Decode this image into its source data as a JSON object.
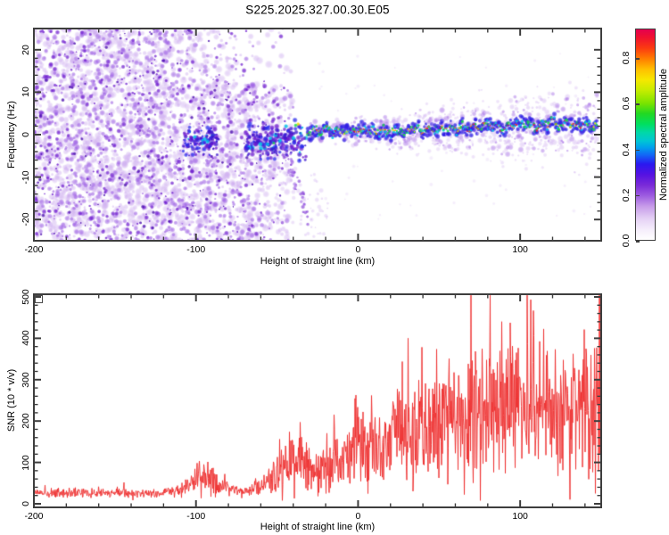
{
  "title": "S225.2025.327.00.30.E05",
  "colors": {
    "trace_red": "#ee3333",
    "axis_frame": "#3e3e3e",
    "text": "#000000",
    "noise_light_purple": "#d0b0ee",
    "noise_dark_purple": "#6a16cd"
  },
  "spectrogram": {
    "xlabel": "Height of straight line (km)",
    "ylabel": "Frequency (Hz)",
    "x_range": [
      -200,
      150
    ],
    "y_range": [
      -25,
      25
    ],
    "x_tick_labels": [
      "-200",
      "-100",
      "0",
      "100"
    ],
    "x_tick_values": [
      -200,
      -100,
      0,
      100
    ],
    "x_minor_step": 20,
    "y_tick_labels": [
      "20",
      "10",
      "0",
      "-10",
      "-20"
    ],
    "y_tick_values": [
      20,
      10,
      0,
      -10,
      -20
    ],
    "y_minor_step": 2
  },
  "colorbar": {
    "label": "Normalized spectral amplitude",
    "tick_labels": [
      "0.0",
      "0.2",
      "0.4",
      "0.6",
      "0.8"
    ],
    "tick_values": [
      0,
      0.2,
      0.4,
      0.6,
      0.8
    ],
    "vmax": 0.93,
    "stops": [
      [
        0.0,
        "#ffffff"
      ],
      [
        0.05,
        "#f5edfb"
      ],
      [
        0.1,
        "#e5d2f5"
      ],
      [
        0.16,
        "#c79be9"
      ],
      [
        0.21,
        "#9d5ce0"
      ],
      [
        0.26,
        "#7a2ad8"
      ],
      [
        0.31,
        "#5512e2"
      ],
      [
        0.36,
        "#2a18f0"
      ],
      [
        0.4,
        "#1460f6"
      ],
      [
        0.44,
        "#00a2ec"
      ],
      [
        0.47,
        "#00c6d4"
      ],
      [
        0.51,
        "#00d8a8"
      ],
      [
        0.55,
        "#00df60"
      ],
      [
        0.6,
        "#22d822"
      ],
      [
        0.65,
        "#7ce400"
      ],
      [
        0.71,
        "#c6ec00"
      ],
      [
        0.76,
        "#f6e800"
      ],
      [
        0.81,
        "#ffc000"
      ],
      [
        0.86,
        "#ff7e00"
      ],
      [
        0.91,
        "#fb3c10"
      ],
      [
        0.96,
        "#f0122e"
      ],
      [
        1.0,
        "#e4004e"
      ]
    ]
  },
  "snr_plot": {
    "xlabel": "Height of straight line (km)",
    "ylabel": "SNR (10 * v/v)",
    "x_range": [
      -200,
      150
    ],
    "y_range": [
      0,
      505
    ],
    "x_tick_labels": [
      "-200",
      "-100",
      "0",
      "100"
    ],
    "x_tick_values": [
      -200,
      -100,
      0,
      100
    ],
    "x_minor_step": 20,
    "y_tick_labels": [
      "500",
      "400",
      "300",
      "200",
      "100",
      "0"
    ],
    "y_tick_values": [
      500,
      400,
      300,
      200,
      100,
      0
    ],
    "y_minor_step": 20
  },
  "chart_data": [
    {
      "type": "heatmap",
      "title": "S225.2025.327.00.30.E05",
      "xlabel": "Height of straight line (km)",
      "ylabel": "Frequency (Hz)",
      "colorbar_label": "Normalized spectral amplitude",
      "xlim": [
        -200,
        150
      ],
      "ylim": [
        -25,
        25
      ],
      "colorbar_range": [
        0.0,
        0.93
      ],
      "description": "Broadband purple noise fills heights -200 to about -55 km; enhanced echo clusters near -100 and -50 km around 0 Hz with cyan cores; from -30 km to 148 km a narrow high-amplitude ridge (red/yellow/green core, blue-purple fringe) meanders near 0-3 Hz, its purple fringe widening toward the right edge.",
      "ridge_x_km": [
        -31,
        -25,
        -20,
        -15,
        -10,
        -5,
        0,
        5,
        10,
        15,
        20,
        25,
        30,
        35,
        40,
        45,
        50,
        55,
        60,
        65,
        70,
        75,
        80,
        85,
        90,
        95,
        100,
        105,
        110,
        115,
        120,
        125,
        130,
        135,
        140,
        145,
        148
      ],
      "ridge_freq_hz": [
        0.8,
        0.5,
        1.2,
        0.4,
        0.8,
        0.3,
        0.8,
        1.2,
        0.7,
        1.0,
        0.6,
        1.1,
        0.8,
        1.4,
        0.9,
        1.3,
        1.0,
        1.6,
        1.1,
        1.7,
        1.3,
        2.0,
        2.4,
        1.8,
        1.4,
        2.0,
        2.6,
        2.2,
        1.8,
        2.4,
        2.8,
        2.2,
        2.5,
        2.1,
        2.6,
        2.3,
        2.4
      ],
      "ridge_fringe_halfwidth_hz": [
        2.5,
        9.0
      ],
      "noise_regions": [
        {
          "name": "broadband-noise",
          "x_km": [
            -200,
            -40
          ],
          "freq_hz": [
            -25,
            25
          ]
        },
        {
          "name": "echo-cluster-a",
          "x_km": [
            -108,
            -86
          ],
          "freq_hz": [
            -7,
            5
          ]
        },
        {
          "name": "echo-cluster-b",
          "x_km": [
            -70,
            -32
          ],
          "freq_hz": [
            -10,
            7
          ]
        },
        {
          "name": "descending-tail",
          "x_km": [
            -47,
            -30
          ],
          "freq_hz": [
            -21,
            -2
          ]
        }
      ]
    },
    {
      "type": "line",
      "xlabel": "Height of straight line (km)",
      "ylabel": "SNR (10 * v/v)",
      "xlim": [
        -200,
        150
      ],
      "ylim": [
        0,
        505
      ],
      "legend": "none",
      "series": [
        {
          "name": "SNR",
          "color": "#ee3333",
          "envelope_x_km": [
            -200,
            -160,
            -120,
            -110,
            -102,
            -95,
            -90,
            -84,
            -76,
            -68,
            -60,
            -54,
            -48,
            -42,
            -36,
            -30,
            -24,
            -18,
            -12,
            -6,
            0,
            8,
            16,
            24,
            32,
            40,
            48,
            56,
            64,
            72,
            80,
            88,
            96,
            104,
            112,
            120,
            128,
            136,
            144,
            148
          ],
          "envelope_mean": [
            26,
            26,
            26,
            30,
            48,
            68,
            60,
            40,
            32,
            34,
            40,
            58,
            88,
            98,
            94,
            88,
            78,
            85,
            100,
            115,
            130,
            148,
            160,
            170,
            178,
            188,
            200,
            208,
            215,
            222,
            228,
            230,
            232,
            228,
            232,
            230,
            233,
            230,
            233,
            240
          ],
          "envelope_halfrange": [
            12,
            12,
            12,
            16,
            30,
            46,
            44,
            22,
            14,
            16,
            22,
            44,
            64,
            74,
            78,
            64,
            54,
            64,
            78,
            84,
            94,
            104,
            110,
            114,
            124,
            138,
            152,
            154,
            158,
            164,
            164,
            160,
            162,
            160,
            163,
            161,
            163,
            162,
            164,
            164
          ],
          "right_edge_spike": 505
        }
      ]
    }
  ],
  "render_seed": 20251327
}
